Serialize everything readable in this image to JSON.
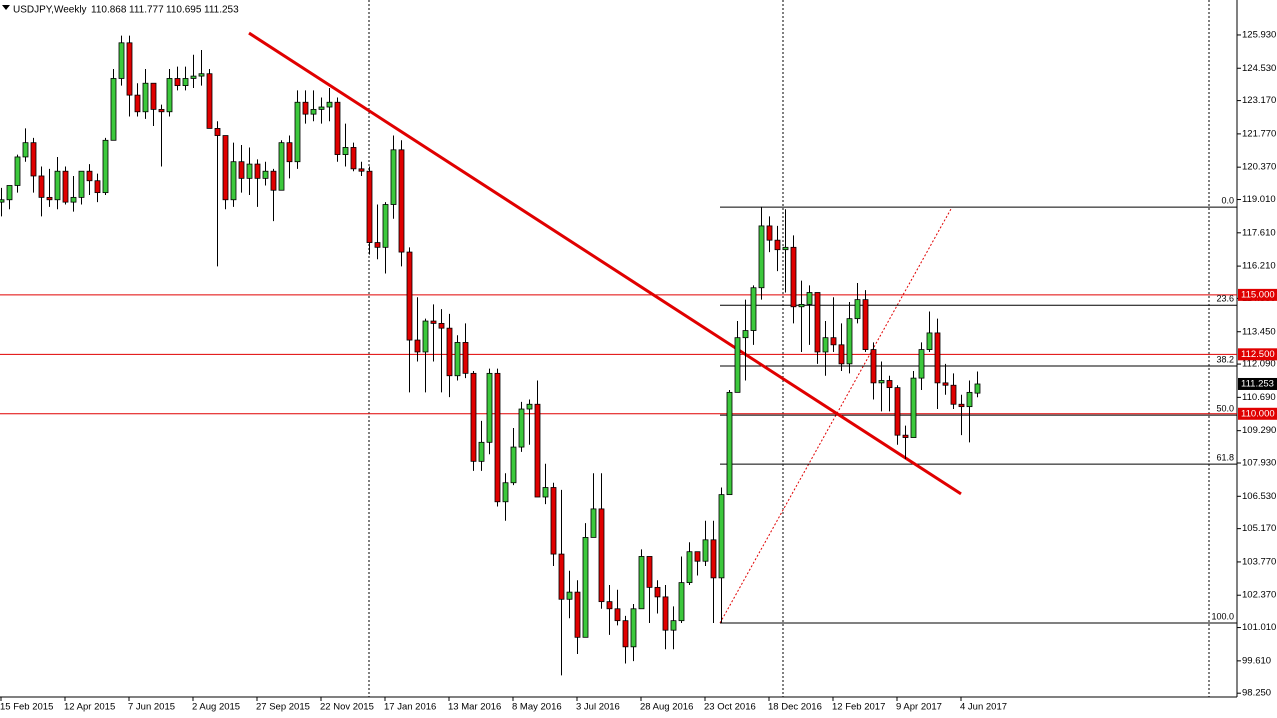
{
  "chart_data": {
    "type": "candlestick",
    "title": "USDJPY,Weekly",
    "categories": [
      "15 Feb 2015",
      null,
      null,
      null,
      null,
      null,
      null,
      null,
      "12 Apr 2015",
      null,
      null,
      null,
      null,
      null,
      null,
      null,
      "7 Jun 2015",
      null,
      null,
      null,
      null,
      null,
      null,
      null,
      "2 Aug 2015",
      null,
      null,
      null,
      null,
      null,
      null,
      null,
      "27 Sep 2015",
      null,
      null,
      null,
      null,
      null,
      null,
      null,
      "22 Nov 2015",
      null,
      null,
      null,
      null,
      null,
      null,
      null,
      "17 Jan 2016",
      null,
      null,
      null,
      null,
      null,
      null,
      null,
      "13 Mar 2016",
      null,
      null,
      null,
      null,
      null,
      null,
      null,
      "8 May 2016",
      null,
      null,
      null,
      null,
      null,
      null,
      null,
      "3 Jul 2016",
      null,
      null,
      null,
      null,
      null,
      null,
      null,
      "28 Aug 2016",
      null,
      null,
      null,
      null,
      null,
      null,
      null,
      "23 Oct 2016",
      null,
      null,
      null,
      null,
      null,
      null,
      null,
      "18 Dec 2016",
      null,
      null,
      null,
      null,
      null,
      null,
      null,
      "12 Feb 2017",
      null,
      null,
      null,
      null,
      null,
      null,
      null,
      "9 Apr 2017",
      null,
      null,
      null,
      null,
      null,
      null,
      null,
      "4 Jun 2017",
      null,
      null
    ],
    "open": [
      118.9,
      119.0,
      119.6,
      120.8,
      121.4,
      120.0,
      119.1,
      119.0,
      120.2,
      118.9,
      119.1,
      120.2,
      119.8,
      119.3,
      121.5,
      124.1,
      125.6,
      123.4,
      122.7,
      123.9,
      122.8,
      122.7,
      124.1,
      123.8,
      124.1,
      124.2,
      124.3,
      122.0,
      121.7,
      119.0,
      120.6,
      119.9,
      120.5,
      119.9,
      120.2,
      119.4,
      121.4,
      120.6,
      123.1,
      122.6,
      122.8,
      122.9,
      123.1,
      120.9,
      121.2,
      120.3,
      120.2,
      117.2,
      117.0,
      118.8,
      121.1,
      116.8,
      113.1,
      112.6,
      113.9,
      113.8,
      113.6,
      111.6,
      113.0,
      111.7,
      108.0,
      108.8,
      111.7,
      106.3,
      107.1,
      108.6,
      110.2,
      110.4,
      106.5,
      106.9,
      104.1,
      102.2,
      102.5,
      100.6,
      104.8,
      106.0,
      102.1,
      101.8,
      101.3,
      100.2,
      101.8,
      104.0,
      102.7,
      102.3,
      100.9,
      101.3,
      102.9,
      104.2,
      103.8,
      104.7,
      103.1,
      106.6,
      110.9,
      113.2,
      113.5,
      115.3,
      117.9,
      117.3,
      116.9,
      117.0,
      114.5,
      114.6,
      115.1,
      112.6,
      113.2,
      112.9,
      112.1,
      114.0,
      114.8,
      112.7,
      111.3,
      111.4,
      111.1,
      109.1,
      109.0,
      111.5,
      112.7,
      113.4,
      111.3,
      111.2,
      110.4,
      110.3,
      110.868
    ],
    "high": [
      119.5,
      119.6,
      120.9,
      122.0,
      121.6,
      120.4,
      120.3,
      120.8,
      120.4,
      120.0,
      120.1,
      120.5,
      120.1,
      121.6,
      124.5,
      125.9,
      125.9,
      123.9,
      124.5,
      123.9,
      123.0,
      124.5,
      124.6,
      124.6,
      125.1,
      125.3,
      124.5,
      122.3,
      121.7,
      121.4,
      121.3,
      121.2,
      120.7,
      120.6,
      120.3,
      121.5,
      121.7,
      123.6,
      123.6,
      123.6,
      123.3,
      123.7,
      123.3,
      122.2,
      121.4,
      120.6,
      120.4,
      118.8,
      118.9,
      121.7,
      121.5,
      117.0,
      114.9,
      114.0,
      114.6,
      114.4,
      114.2,
      113.3,
      113.8,
      111.8,
      109.7,
      111.9,
      111.9,
      107.5,
      109.4,
      110.5,
      110.6,
      111.4,
      107.9,
      107.1,
      106.8,
      103.4,
      103.0,
      105.4,
      107.5,
      107.5,
      102.8,
      102.6,
      101.5,
      102.0,
      104.3,
      104.0,
      103.0,
      102.8,
      101.9,
      104.0,
      104.6,
      104.2,
      105.5,
      105.5,
      106.9,
      111.0,
      113.9,
      114.8,
      115.4,
      118.7,
      118.3,
      117.9,
      118.6,
      117.5,
      115.6,
      115.4,
      115.1,
      113.9,
      114.9,
      113.8,
      114.7,
      115.5,
      115.2,
      113.0,
      112.2,
      111.6,
      111.2,
      109.5,
      111.8,
      113.0,
      114.3,
      114.0,
      112.1,
      111.7,
      110.8,
      111.4,
      111.777
    ],
    "low": [
      118.3,
      118.6,
      119.3,
      120.6,
      119.3,
      118.3,
      118.7,
      118.6,
      118.8,
      118.5,
      118.8,
      119.2,
      118.9,
      119.2,
      121.5,
      123.8,
      122.5,
      122.5,
      122.4,
      122.1,
      120.4,
      122.5,
      123.6,
      123.6,
      123.7,
      123.8,
      122.0,
      116.2,
      118.6,
      118.7,
      119.3,
      119.2,
      118.7,
      119.6,
      118.1,
      119.4,
      119.9,
      120.3,
      122.2,
      122.3,
      122.2,
      122.3,
      120.6,
      120.4,
      120.2,
      120.0,
      116.7,
      116.5,
      115.9,
      118.2,
      116.2,
      110.9,
      112.2,
      110.9,
      112.2,
      110.9,
      110.7,
      111.4,
      111.5,
      107.6,
      107.6,
      108.3,
      106.1,
      105.5,
      107.0,
      108.4,
      108.7,
      106.5,
      106.2,
      103.6,
      99.0,
      101.4,
      99.9,
      100.6,
      104.8,
      101.8,
      100.7,
      101.1,
      99.5,
      99.6,
      101.8,
      101.2,
      101.6,
      100.1,
      100.1,
      101.2,
      102.8,
      103.2,
      103.6,
      101.2,
      101.2,
      106.6,
      110.9,
      111.4,
      112.9,
      114.8,
      116.8,
      116.0,
      115.1,
      113.8,
      112.6,
      112.9,
      112.1,
      111.6,
      112.6,
      111.8,
      111.7,
      113.8,
      112.6,
      110.6,
      110.1,
      110.1,
      108.7,
      108.1,
      109.0,
      111.0,
      112.6,
      110.2,
      110.8,
      110.2,
      109.1,
      108.8,
      110.695
    ],
    "close": [
      119.0,
      119.6,
      120.8,
      121.4,
      120.0,
      119.1,
      119.0,
      120.2,
      118.9,
      119.1,
      120.2,
      119.8,
      119.3,
      121.5,
      124.1,
      125.6,
      123.4,
      122.7,
      123.9,
      122.8,
      122.7,
      124.1,
      123.8,
      124.1,
      124.2,
      124.3,
      122.0,
      121.7,
      119.0,
      120.6,
      119.9,
      120.5,
      119.9,
      120.2,
      119.4,
      121.4,
      120.6,
      123.1,
      122.6,
      122.8,
      122.9,
      123.1,
      120.9,
      121.2,
      120.3,
      120.2,
      117.2,
      117.0,
      118.8,
      121.1,
      116.8,
      113.1,
      112.6,
      113.9,
      113.8,
      113.6,
      111.6,
      113.0,
      111.7,
      108.0,
      108.8,
      111.7,
      106.3,
      107.1,
      108.6,
      110.2,
      110.4,
      106.5,
      106.9,
      104.1,
      102.2,
      102.5,
      100.6,
      104.8,
      106.0,
      102.1,
      101.8,
      101.3,
      100.2,
      101.8,
      104.0,
      102.7,
      102.3,
      100.9,
      101.3,
      102.9,
      104.2,
      103.8,
      104.7,
      103.1,
      106.6,
      110.9,
      113.2,
      113.5,
      115.3,
      117.9,
      117.3,
      116.9,
      117.0,
      114.5,
      114.6,
      115.1,
      112.6,
      113.2,
      112.9,
      112.1,
      114.0,
      114.8,
      112.7,
      111.3,
      111.4,
      111.1,
      109.1,
      109.0,
      111.5,
      112.7,
      113.4,
      111.3,
      111.2,
      110.4,
      110.3,
      110.9,
      111.253
    ],
    "ylim": [
      98.09,
      127.4
    ],
    "yticks": [
      {
        "value": 125.93,
        "label": "125.930"
      },
      {
        "value": 124.53,
        "label": "124.530"
      },
      {
        "value": 123.17,
        "label": "123.170"
      },
      {
        "value": 121.77,
        "label": "121.770"
      },
      {
        "value": 120.37,
        "label": "120.370"
      },
      {
        "value": 119.01,
        "label": "119.010"
      },
      {
        "value": 117.61,
        "label": "117.610"
      },
      {
        "value": 116.21,
        "label": "116.210"
      },
      {
        "value": 114.85,
        "label": "114.850"
      },
      {
        "value": 113.45,
        "label": "113.450"
      },
      {
        "value": 112.09,
        "label": "112.090"
      },
      {
        "value": 110.69,
        "label": "110.690"
      },
      {
        "value": 109.29,
        "label": "109.290"
      },
      {
        "value": 107.93,
        "label": "107.930"
      },
      {
        "value": 106.53,
        "label": "106.530"
      },
      {
        "value": 105.17,
        "label": "105.170"
      },
      {
        "value": 103.77,
        "label": "103.770"
      },
      {
        "value": 102.37,
        "label": "102.370"
      },
      {
        "value": 101.01,
        "label": "101.010"
      },
      {
        "value": 99.61,
        "label": "99.610"
      },
      {
        "value": 98.25,
        "label": "98.250"
      }
    ],
    "levels": [
      {
        "value": 115,
        "label": "115.000"
      },
      {
        "value": 112.5,
        "label": "112.500"
      },
      {
        "value": 110,
        "label": "110.000"
      }
    ],
    "fib": {
      "from": 101.2,
      "to": 118.69,
      "levels": [
        {
          "value": 0,
          "label": "0.0"
        },
        23.6,
        38.2,
        {
          "value": 50,
          "label": "50.0"
        },
        61.8,
        {
          "value": 100,
          "label": "100.0"
        }
      ]
    },
    "trendline": {
      "start": 126.01,
      "end": 106.63
    },
    "colors": {
      "up": "#3cc83c",
      "down": "#e00000",
      "level": "#e00000"
    }
  }
}
